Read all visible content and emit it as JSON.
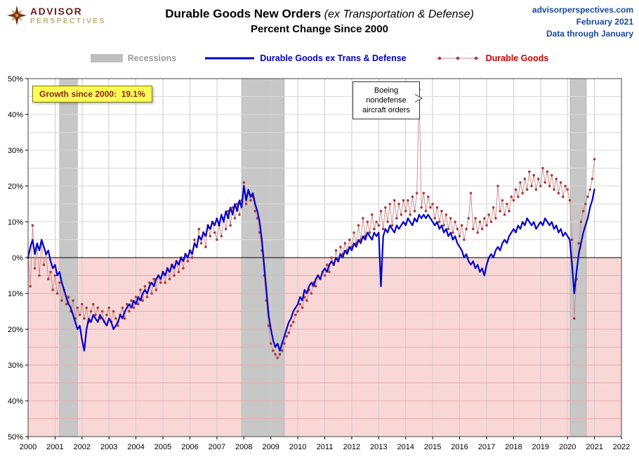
{
  "header": {
    "logo": {
      "line1": "ADVISOR",
      "line2": "PERSPECTIVES"
    },
    "title_main": "Durable Goods New Orders",
    "title_italic": "(ex Transportation & Defense)",
    "title_sub": "Percent Change Since 2000",
    "site": "advisorperspectives.com",
    "date": "February 2021",
    "through": "Data through January"
  },
  "legend": {
    "items": [
      {
        "label": "Recessions",
        "color": "#BFBFBF"
      },
      {
        "label": "Durable Goods ex Trans & Defense",
        "color": "#0000CD"
      },
      {
        "label": "Durable Goods",
        "color": "#CC0000",
        "line_color": "#CC8888",
        "marker_color": "#AE3C3C"
      }
    ]
  },
  "annotations": {
    "growth_box": "Growth since 2000:  19.1%",
    "callout_lines": [
      "Boeing",
      "nondefense",
      "aircraft orders"
    ]
  },
  "chart_data": {
    "type": "line",
    "title": "Durable Goods New Orders (ex Transportation & Defense) Percent Change Since 2000",
    "xlabel": "",
    "ylabel": "Percent change since 2000",
    "ylim": [
      -50,
      50
    ],
    "grid": true,
    "legend_position": "top",
    "start_year": 2000,
    "freq": "monthly",
    "negative_fill": "#F9D7D7",
    "recession_fill": "#C7C7C7",
    "recessions": [
      [
        1.17,
        1.83
      ],
      [
        7.92,
        9.5
      ],
      [
        20.1,
        20.7
      ]
    ],
    "yticks": [
      {
        "v": 50,
        "label": "50%"
      },
      {
        "v": 40,
        "label": "40%"
      },
      {
        "v": 30,
        "label": "30%"
      },
      {
        "v": 20,
        "label": "20%"
      },
      {
        "v": 10,
        "label": "10%"
      },
      {
        "v": 0,
        "label": "0%"
      },
      {
        "v": -10,
        "label": "10%"
      },
      {
        "v": -20,
        "label": "20%"
      },
      {
        "v": -30,
        "label": "30%"
      },
      {
        "v": -40,
        "label": "40%"
      },
      {
        "v": -50,
        "label": "50%"
      }
    ],
    "xticks": [
      "2000",
      "2001",
      "2002",
      "2003",
      "2004",
      "2005",
      "2006",
      "2007",
      "2008",
      "2009",
      "2010",
      "2011",
      "2012",
      "2013",
      "2014",
      "2015",
      "2016",
      "2017",
      "2018",
      "2019",
      "2020",
      "2021",
      "2022"
    ],
    "series": [
      {
        "name": "Durable Goods ex Trans & Defense",
        "color": "#0000CD",
        "type": "line",
        "values": [
          0,
          3,
          5,
          1,
          4,
          2,
          5,
          3,
          1,
          2,
          -1,
          -3,
          -2,
          -5,
          -4,
          -7,
          -9,
          -11,
          -13,
          -14,
          -16,
          -18,
          -20,
          -19,
          -23,
          -26,
          -20,
          -17,
          -18,
          -16,
          -17,
          -18,
          -16,
          -17,
          -18,
          -19,
          -17,
          -18,
          -20,
          -19,
          -18,
          -16,
          -17,
          -15,
          -14,
          -13,
          -14,
          -12,
          -13,
          -11,
          -12,
          -10,
          -9,
          -10,
          -8,
          -7,
          -8,
          -6,
          -5,
          -6,
          -4,
          -5,
          -3,
          -4,
          -2,
          -3,
          -1,
          -2,
          0,
          -1,
          1,
          0,
          2,
          1,
          4,
          3,
          6,
          5,
          7,
          6,
          9,
          8,
          10,
          9,
          11,
          9,
          12,
          10,
          13,
          11,
          14,
          12,
          15,
          13,
          16,
          14,
          20,
          16,
          19,
          17,
          18,
          15,
          13,
          10,
          5,
          -2,
          -9,
          -16,
          -20,
          -23,
          -25,
          -24,
          -26,
          -24,
          -22,
          -20,
          -18,
          -17,
          -15,
          -14,
          -13,
          -11,
          -12,
          -9,
          -10,
          -8,
          -7,
          -8,
          -6,
          -5,
          -6,
          -4,
          -3,
          -4,
          -2,
          -1,
          -2,
          0,
          -1,
          1,
          0,
          2,
          1,
          3,
          2,
          4,
          3,
          5,
          4,
          6,
          5,
          7,
          6,
          5,
          7,
          6,
          7,
          -8,
          6,
          8,
          7,
          9,
          8,
          7,
          9,
          8,
          9,
          10,
          9,
          11,
          10,
          9,
          11,
          10,
          12,
          11,
          12,
          11,
          12,
          11,
          10,
          9,
          10,
          8,
          9,
          7,
          8,
          6,
          7,
          5,
          6,
          4,
          3,
          2,
          0,
          1,
          -1,
          -2,
          -1,
          -3,
          -2,
          -4,
          -3,
          -5,
          -2,
          0,
          1,
          0,
          2,
          3,
          2,
          4,
          5,
          4,
          6,
          7,
          8,
          7,
          9,
          8,
          10,
          9,
          11,
          10,
          9,
          10,
          8,
          9,
          10,
          9,
          11,
          10,
          9,
          10,
          8,
          9,
          7,
          8,
          6,
          7,
          6,
          5,
          -2,
          -10,
          -4,
          1,
          4,
          7,
          9,
          11,
          14,
          16,
          19.1
        ]
      },
      {
        "name": "Durable Goods",
        "color": "#CC0000",
        "line_color": "#CC8888",
        "marker_color": "#AE3C3C",
        "type": "line-markers",
        "values": [
          0,
          -8,
          9,
          -3,
          3,
          -5,
          4,
          -2,
          1,
          -6,
          -4,
          -9,
          -5,
          -10,
          -7,
          -12,
          -9,
          -13,
          -11,
          -15,
          -12,
          -17,
          -14,
          -16,
          -13,
          -17,
          -14,
          -18,
          -15,
          -13,
          -16,
          -14,
          -17,
          -15,
          -18,
          -16,
          -14,
          -18,
          -15,
          -17,
          -19,
          -16,
          -14,
          -17,
          -13,
          -15,
          -12,
          -14,
          -11,
          -13,
          -9,
          -12,
          -8,
          -11,
          -7,
          -10,
          -6,
          -9,
          -5,
          -7,
          -4,
          -7,
          -3,
          -6,
          -2,
          -5,
          -1,
          -4,
          0,
          -3,
          1,
          -1,
          2,
          0,
          5,
          3,
          8,
          4,
          7,
          3,
          9,
          6,
          10,
          7,
          5,
          9,
          6,
          11,
          8,
          13,
          9,
          14,
          11,
          15,
          12,
          16,
          21,
          15,
          18,
          16,
          17,
          13,
          11,
          7,
          2,
          -5,
          -12,
          -19,
          -24,
          -26,
          -27,
          -28,
          -27,
          -26,
          -24,
          -22,
          -21,
          -19,
          -18,
          -16,
          -15,
          -13,
          -14,
          -11,
          -12,
          -9,
          -10,
          -7,
          -8,
          -5,
          -6,
          -4,
          -5,
          -2,
          -4,
          0,
          -2,
          2,
          -1,
          3,
          1,
          4,
          2,
          5,
          3,
          7,
          4,
          9,
          5,
          11,
          6,
          10,
          7,
          12,
          8,
          10,
          9,
          13,
          8,
          14,
          10,
          15,
          9,
          16,
          11,
          15,
          12,
          16,
          13,
          16,
          12,
          17,
          13,
          18,
          47,
          14,
          18,
          13,
          17,
          14,
          15,
          11,
          14,
          10,
          13,
          9,
          12,
          8,
          11,
          7,
          10,
          8,
          6,
          9,
          5,
          8,
          11,
          18,
          8,
          11,
          7,
          10,
          8,
          11,
          9,
          12,
          10,
          14,
          11,
          20,
          13,
          16,
          12,
          15,
          13,
          17,
          16,
          19,
          17,
          21,
          18,
          22,
          19,
          24,
          20,
          23,
          19,
          22,
          20,
          25,
          21,
          24,
          20,
          23,
          19,
          22,
          18,
          21,
          17,
          20,
          19,
          16,
          5,
          -17,
          -6,
          4,
          10,
          13,
          15,
          17,
          19,
          22,
          27.5
        ]
      }
    ]
  }
}
